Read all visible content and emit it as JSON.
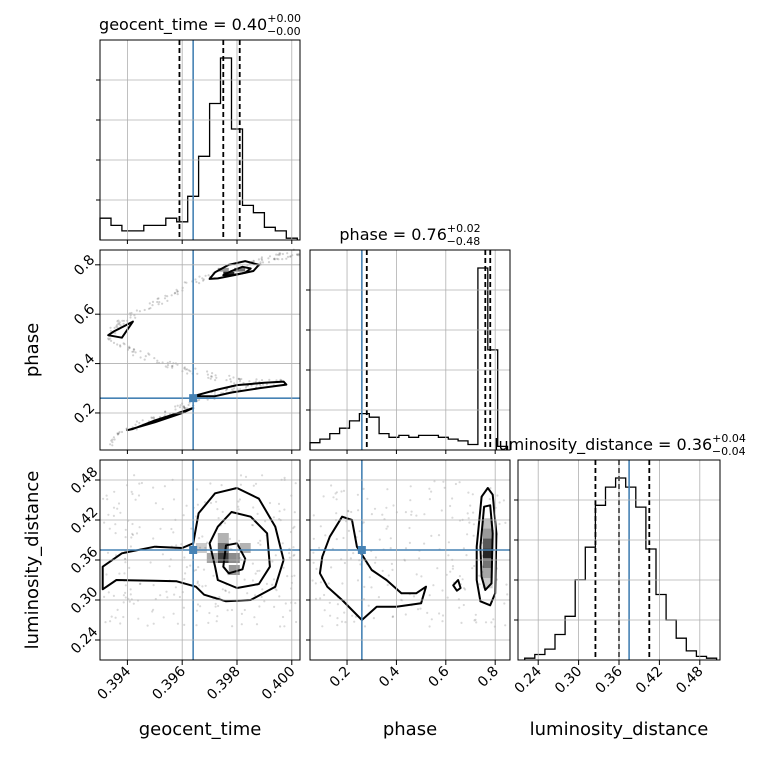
{
  "chart_data": {
    "type": "corner",
    "parameters": [
      "geocent_time",
      "phase",
      "luminosity_distance"
    ],
    "axis_labels": [
      "geocent_time",
      "phase",
      "luminosity_distance"
    ],
    "ranges": {
      "geocent_time": [
        0.393,
        0.4003
      ],
      "phase": [
        0.05,
        0.86
      ],
      "luminosity_distance": [
        0.21,
        0.51
      ]
    },
    "ticks": {
      "geocent_time": {
        "values": [
          0.394,
          0.396,
          0.398,
          0.4
        ],
        "labels": [
          "0.394",
          "0.396",
          "0.398",
          "0.400"
        ]
      },
      "phase": {
        "values": [
          0.2,
          0.4,
          0.6,
          0.8
        ],
        "labels": [
          "0.2",
          "0.4",
          "0.6",
          "0.8"
        ]
      },
      "luminosity_distance": {
        "values": [
          0.24,
          0.3,
          0.36,
          0.42,
          0.48
        ],
        "labels": [
          "0.24",
          "0.30",
          "0.36",
          "0.42",
          "0.48"
        ]
      }
    },
    "titles": [
      {
        "param": "geocent_time",
        "name": "geocent_time",
        "median": "0.40",
        "plus": "+0.00",
        "minus": "−0.00"
      },
      {
        "param": "phase",
        "name": "phase",
        "median": "0.76",
        "plus": "+0.02",
        "minus": "−0.48"
      },
      {
        "param": "luminosity_distance",
        "name": "luminosity_distance",
        "median": "0.36",
        "plus": "+0.04",
        "minus": "−0.04"
      }
    ],
    "injection": {
      "geocent_time": 0.3964,
      "phase": 0.26,
      "luminosity_distance": 0.375
    },
    "quantiles": {
      "geocent_time": [
        0.3959,
        0.3975,
        0.3981
      ],
      "phase": [
        0.28,
        0.76,
        0.78
      ],
      "luminosity_distance": [
        0.325,
        0.36,
        0.405
      ]
    },
    "histograms": {
      "geocent_time": {
        "edges": [
          0.393,
          0.3934,
          0.3938,
          0.3942,
          0.3946,
          0.395,
          0.3954,
          0.3958,
          0.3962,
          0.3966,
          0.397,
          0.3974,
          0.3978,
          0.3982,
          0.3986,
          0.399,
          0.3994,
          0.3998,
          0.4002
        ],
        "counts": [
          0.12,
          0.08,
          0.05,
          0.05,
          0.08,
          0.08,
          0.12,
          0.1,
          0.24,
          0.46,
          0.75,
          1.0,
          0.61,
          0.19,
          0.15,
          0.07,
          0.05,
          0.01
        ]
      },
      "phase": {
        "edges": [
          0.05,
          0.09,
          0.13,
          0.17,
          0.21,
          0.25,
          0.29,
          0.33,
          0.37,
          0.41,
          0.45,
          0.49,
          0.53,
          0.57,
          0.61,
          0.65,
          0.69,
          0.73,
          0.77,
          0.81,
          0.85
        ],
        "counts": [
          0.04,
          0.06,
          0.09,
          0.12,
          0.16,
          0.2,
          0.18,
          0.09,
          0.07,
          0.08,
          0.07,
          0.08,
          0.08,
          0.07,
          0.06,
          0.05,
          0.03,
          1.0,
          0.55,
          0.02
        ]
      },
      "luminosity_distance": {
        "edges": [
          0.22,
          0.235,
          0.25,
          0.265,
          0.28,
          0.295,
          0.31,
          0.325,
          0.34,
          0.355,
          0.37,
          0.385,
          0.4,
          0.415,
          0.43,
          0.445,
          0.46,
          0.475,
          0.49,
          0.505
        ],
        "counts": [
          0.01,
          0.03,
          0.06,
          0.14,
          0.24,
          0.44,
          0.62,
          0.85,
          0.95,
          1.0,
          0.95,
          0.84,
          0.61,
          0.36,
          0.22,
          0.12,
          0.05,
          0.02,
          0.01
        ]
      }
    },
    "contours": {
      "phase_vs_geocent_time": [
        [
          [
            0.397,
            0.743
          ],
          [
            0.3972,
            0.77
          ],
          [
            0.3977,
            0.8
          ],
          [
            0.3983,
            0.815
          ],
          [
            0.3988,
            0.8
          ],
          [
            0.3986,
            0.775
          ],
          [
            0.3979,
            0.758
          ],
          [
            0.3973,
            0.745
          ]
        ],
        [
          [
            0.3975,
            0.758
          ],
          [
            0.3978,
            0.775
          ],
          [
            0.3982,
            0.792
          ],
          [
            0.3985,
            0.785
          ],
          [
            0.3983,
            0.768
          ],
          [
            0.3978,
            0.758
          ]
        ],
        [
          [
            0.3964,
            0.268
          ],
          [
            0.3973,
            0.295
          ],
          [
            0.398,
            0.313
          ],
          [
            0.399,
            0.322
          ],
          [
            0.3997,
            0.327
          ],
          [
            0.3998,
            0.315
          ],
          [
            0.3988,
            0.3
          ],
          [
            0.3978,
            0.283
          ],
          [
            0.3972,
            0.268
          ]
        ],
        [
          [
            0.394,
            0.13
          ],
          [
            0.395,
            0.162
          ],
          [
            0.396,
            0.2
          ],
          [
            0.3964,
            0.22
          ],
          [
            0.396,
            0.205
          ],
          [
            0.395,
            0.17
          ],
          [
            0.3942,
            0.135
          ]
        ],
        [
          [
            0.3935,
            0.53
          ],
          [
            0.3942,
            0.57
          ],
          [
            0.3938,
            0.505
          ],
          [
            0.3933,
            0.515
          ]
        ]
      ],
      "luminosity_distance_vs_geocent_time": [
        [
          [
            0.3931,
            0.316
          ],
          [
            0.3936,
            0.33
          ],
          [
            0.395,
            0.329
          ],
          [
            0.3958,
            0.328
          ],
          [
            0.3965,
            0.32
          ],
          [
            0.3968,
            0.308
          ],
          [
            0.3976,
            0.298
          ],
          [
            0.3985,
            0.3
          ],
          [
            0.3994,
            0.32
          ],
          [
            0.3997,
            0.36
          ],
          [
            0.3994,
            0.41
          ],
          [
            0.3988,
            0.452
          ],
          [
            0.398,
            0.468
          ],
          [
            0.3972,
            0.46
          ],
          [
            0.3966,
            0.43
          ],
          [
            0.3964,
            0.385
          ],
          [
            0.396,
            0.378
          ],
          [
            0.395,
            0.38
          ],
          [
            0.3938,
            0.37
          ],
          [
            0.3931,
            0.35
          ]
        ],
        [
          [
            0.3972,
            0.35
          ],
          [
            0.3973,
            0.33
          ],
          [
            0.398,
            0.318
          ],
          [
            0.3988,
            0.324
          ],
          [
            0.3992,
            0.35
          ],
          [
            0.3991,
            0.4
          ],
          [
            0.3985,
            0.425
          ],
          [
            0.3978,
            0.432
          ],
          [
            0.3973,
            0.41
          ],
          [
            0.397,
            0.385
          ]
        ],
        [
          [
            0.3975,
            0.35
          ],
          [
            0.3977,
            0.34
          ],
          [
            0.3982,
            0.346
          ],
          [
            0.3983,
            0.362
          ],
          [
            0.398,
            0.385
          ],
          [
            0.3976,
            0.382
          ]
        ]
      ],
      "luminosity_distance_vs_phase": [
        [
          [
            0.1,
            0.365
          ],
          [
            0.13,
            0.395
          ],
          [
            0.18,
            0.425
          ],
          [
            0.22,
            0.42
          ],
          [
            0.24,
            0.38
          ],
          [
            0.3,
            0.345
          ],
          [
            0.36,
            0.33
          ],
          [
            0.42,
            0.31
          ],
          [
            0.48,
            0.31
          ],
          [
            0.52,
            0.32
          ],
          [
            0.5,
            0.295
          ],
          [
            0.4,
            0.29
          ],
          [
            0.32,
            0.29
          ],
          [
            0.26,
            0.27
          ],
          [
            0.18,
            0.3
          ],
          [
            0.12,
            0.32
          ],
          [
            0.09,
            0.34
          ]
        ],
        [
          [
            0.725,
            0.38
          ],
          [
            0.745,
            0.455
          ],
          [
            0.77,
            0.468
          ],
          [
            0.79,
            0.458
          ],
          [
            0.805,
            0.4
          ],
          [
            0.8,
            0.31
          ],
          [
            0.78,
            0.292
          ],
          [
            0.74,
            0.298
          ],
          [
            0.725,
            0.33
          ]
        ],
        [
          [
            0.74,
            0.38
          ],
          [
            0.755,
            0.44
          ],
          [
            0.78,
            0.442
          ],
          [
            0.79,
            0.4
          ],
          [
            0.785,
            0.325
          ],
          [
            0.76,
            0.315
          ],
          [
            0.745,
            0.335
          ]
        ],
        [
          [
            0.63,
            0.322
          ],
          [
            0.65,
            0.33
          ],
          [
            0.66,
            0.318
          ],
          [
            0.645,
            0.314
          ]
        ]
      ]
    },
    "density_cells": {
      "luminosity_distance_vs_geocent_time": [
        [
          0.3975,
          0.363,
          0.75
        ],
        [
          0.3975,
          0.378,
          0.55
        ],
        [
          0.3979,
          0.363,
          0.45
        ],
        [
          0.3979,
          0.345,
          0.4
        ],
        [
          0.3971,
          0.363,
          0.35
        ],
        [
          0.3975,
          0.393,
          0.3
        ],
        [
          0.3983,
          0.378,
          0.3
        ],
        [
          0.3967,
          0.378,
          0.2
        ]
      ],
      "luminosity_distance_vs_phase": [
        [
          0.77,
          0.37,
          0.85
        ],
        [
          0.77,
          0.385,
          0.65
        ],
        [
          0.77,
          0.355,
          0.55
        ],
        [
          0.77,
          0.4,
          0.4
        ],
        [
          0.77,
          0.34,
          0.35
        ],
        [
          0.77,
          0.415,
          0.25
        ],
        [
          0.77,
          0.325,
          0.2
        ]
      ],
      "phase_vs_geocent_time": [
        [
          0.3977,
          0.765,
          0.85
        ],
        [
          0.3981,
          0.78,
          0.55
        ],
        [
          0.3975,
          0.78,
          0.4
        ]
      ]
    },
    "scatter_tracks": {
      "phase_vs_geocent_time": [
        [
          [
            0.3933,
            0.08
          ],
          [
            0.394,
            0.13
          ],
          [
            0.395,
            0.18
          ],
          [
            0.396,
            0.22
          ],
          [
            0.3966,
            0.25
          ],
          [
            0.3976,
            0.29
          ],
          [
            0.3986,
            0.31
          ],
          [
            0.3996,
            0.33
          ]
        ],
        [
          [
            0.3933,
            0.5
          ],
          [
            0.3942,
            0.45
          ],
          [
            0.395,
            0.41
          ],
          [
            0.396,
            0.38
          ],
          [
            0.397,
            0.35
          ],
          [
            0.398,
            0.33
          ],
          [
            0.399,
            0.32
          ]
        ],
        [
          [
            0.3933,
            0.51
          ],
          [
            0.3937,
            0.56
          ],
          [
            0.3943,
            0.6
          ],
          [
            0.3953,
            0.66
          ],
          [
            0.3962,
            0.72
          ],
          [
            0.3972,
            0.76
          ]
        ],
        [
          [
            0.3984,
            0.8
          ],
          [
            0.399,
            0.82
          ],
          [
            0.3996,
            0.835
          ],
          [
            0.4003,
            0.85
          ]
        ]
      ]
    }
  }
}
